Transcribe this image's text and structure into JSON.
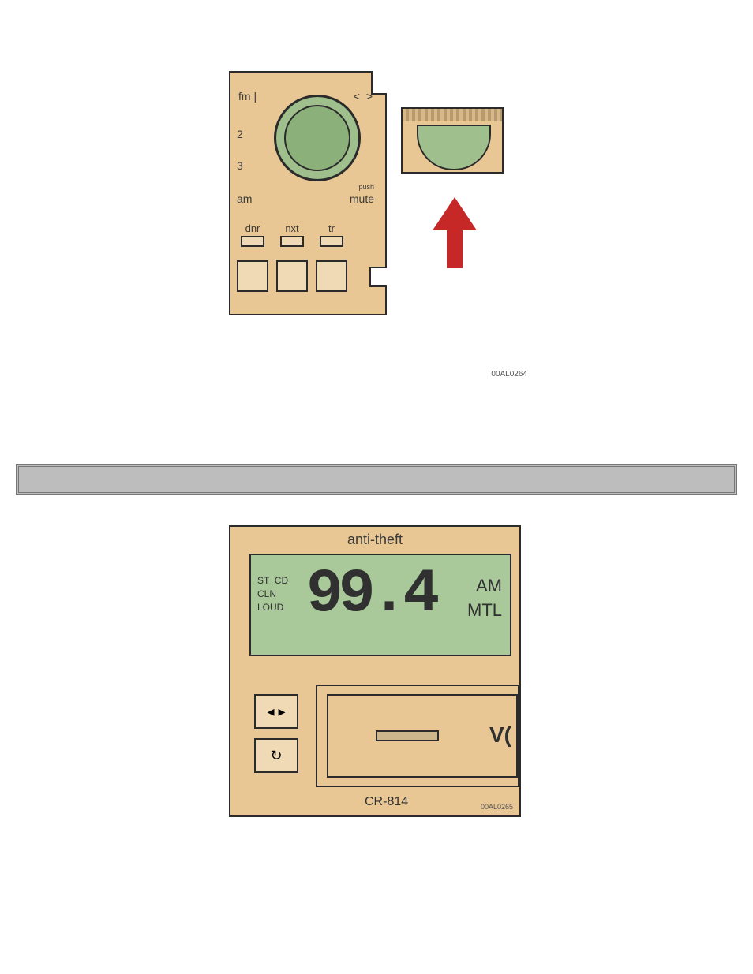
{
  "figure1": {
    "dial_labels": {
      "fm": "fm |",
      "two": "2",
      "three": "3",
      "am": "am",
      "arrows": "< >",
      "push": "push",
      "mute": "mute"
    },
    "buttons": [
      "dnr",
      "nxt",
      "tr"
    ],
    "image_id": "00AL0264"
  },
  "figure2": {
    "title": "anti-theft",
    "lcd": {
      "left_lines": "ST  CD\nCLN\nLOUD",
      "frequency": "99.4",
      "right_lines": "AM\nMTL"
    },
    "side_buttons": {
      "eject": "◂ ▸",
      "loop": "↻"
    },
    "cassette_brand": "V(",
    "model": "CR-814",
    "image_id": "00AL0265"
  },
  "colors": {
    "panel": "#e9c795",
    "lcd": "#aac99b",
    "knob": "#9fbf8c",
    "arrow": "#c62828",
    "divider": "#bdbdbd"
  }
}
